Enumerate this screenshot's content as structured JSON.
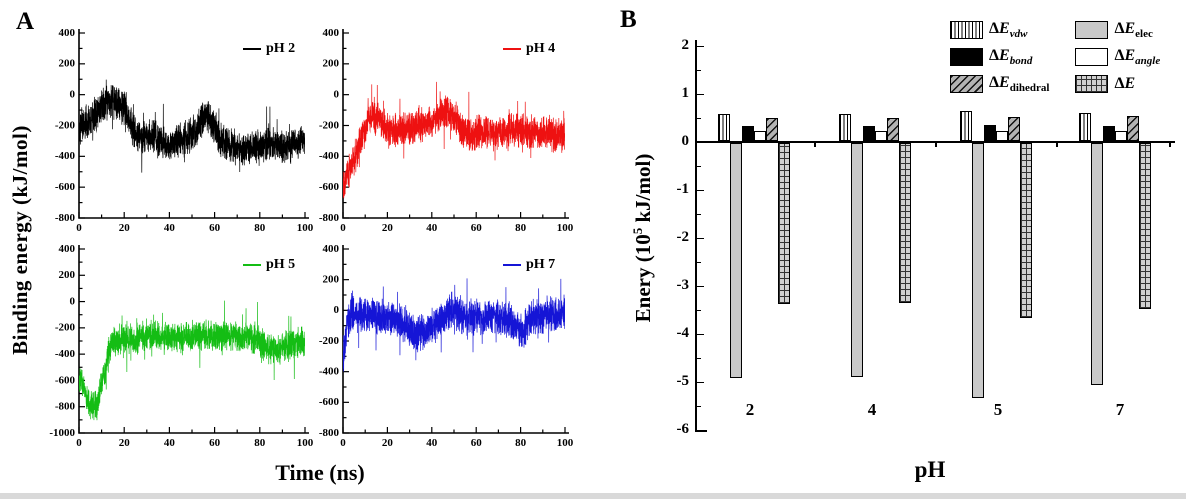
{
  "panel_a": {
    "label": "A",
    "ylabel": "Binding energy  (kJ/mol)",
    "xlabel": "Time (ns)"
  },
  "panel_b": {
    "label": "B",
    "ylabel_prefix": "Enery (10",
    "ylabel_sup": "5",
    "ylabel_suffix": " kJ/mol)",
    "xlabel": "pH"
  },
  "chart_data": [
    {
      "id": "A",
      "type": "line",
      "xlabel": "Time (ns)",
      "ylabel": "Binding energy (kJ/mol)",
      "xlim": [
        0,
        100
      ],
      "xticks": [
        0,
        20,
        40,
        60,
        80,
        100
      ],
      "x_minor_step": 10,
      "y_minor_step": 100,
      "subplots": [
        {
          "name": "pH 2",
          "color": "#000000",
          "ylim": [
            -800,
            400
          ],
          "yticks": [
            400,
            200,
            0,
            -200,
            -400,
            -600,
            -800
          ],
          "noise": 125,
          "spike": 190,
          "seed": 11,
          "trend": [
            [
              0,
              -220
            ],
            [
              3,
              -180
            ],
            [
              6,
              -140
            ],
            [
              10,
              -80
            ],
            [
              13,
              -50
            ],
            [
              16,
              -40
            ],
            [
              20,
              -90
            ],
            [
              24,
              -230
            ],
            [
              28,
              -290
            ],
            [
              32,
              -260
            ],
            [
              36,
              -310
            ],
            [
              40,
              -320
            ],
            [
              44,
              -300
            ],
            [
              48,
              -280
            ],
            [
              52,
              -230
            ],
            [
              55,
              -160
            ],
            [
              57,
              -140
            ],
            [
              60,
              -220
            ],
            [
              64,
              -310
            ],
            [
              68,
              -350
            ],
            [
              72,
              -360
            ],
            [
              76,
              -350
            ],
            [
              80,
              -340
            ],
            [
              84,
              -310
            ],
            [
              88,
              -330
            ],
            [
              92,
              -330
            ],
            [
              96,
              -310
            ],
            [
              100,
              -290
            ]
          ]
        },
        {
          "name": "pH 4",
          "color": "#ee1111",
          "ylim": [
            -800,
            400
          ],
          "yticks": [
            400,
            200,
            0,
            -200,
            -400,
            -600,
            -800
          ],
          "noise": 125,
          "spike": 190,
          "seed": 22,
          "trend": [
            [
              0,
              -560
            ],
            [
              2,
              -520
            ],
            [
              4,
              -450
            ],
            [
              6,
              -380
            ],
            [
              8,
              -300
            ],
            [
              10,
              -220
            ],
            [
              12,
              -150
            ],
            [
              14,
              -130
            ],
            [
              16,
              -150
            ],
            [
              18,
              -200
            ],
            [
              20,
              -230
            ],
            [
              24,
              -240
            ],
            [
              28,
              -220
            ],
            [
              32,
              -210
            ],
            [
              36,
              -190
            ],
            [
              40,
              -170
            ],
            [
              44,
              -130
            ],
            [
              47,
              -100
            ],
            [
              50,
              -140
            ],
            [
              53,
              -220
            ],
            [
              56,
              -260
            ],
            [
              60,
              -250
            ],
            [
              64,
              -240
            ],
            [
              68,
              -260
            ],
            [
              72,
              -240
            ],
            [
              76,
              -230
            ],
            [
              80,
              -230
            ],
            [
              84,
              -240
            ],
            [
              88,
              -250
            ],
            [
              92,
              -240
            ],
            [
              96,
              -260
            ],
            [
              100,
              -250
            ]
          ]
        },
        {
          "name": "pH 5",
          "color": "#14bd14",
          "ylim": [
            -1000,
            400
          ],
          "yticks": [
            400,
            200,
            0,
            -200,
            -400,
            -600,
            -800,
            -1000
          ],
          "noise": 130,
          "spike": 200,
          "seed": 33,
          "trend": [
            [
              0,
              -600
            ],
            [
              2,
              -620
            ],
            [
              4,
              -780
            ],
            [
              6,
              -800
            ],
            [
              8,
              -780
            ],
            [
              10,
              -620
            ],
            [
              12,
              -480
            ],
            [
              14,
              -340
            ],
            [
              16,
              -300
            ],
            [
              20,
              -280
            ],
            [
              25,
              -290
            ],
            [
              30,
              -260
            ],
            [
              35,
              -260
            ],
            [
              40,
              -280
            ],
            [
              45,
              -270
            ],
            [
              50,
              -260
            ],
            [
              55,
              -250
            ],
            [
              60,
              -270
            ],
            [
              65,
              -260
            ],
            [
              70,
              -270
            ],
            [
              75,
              -260
            ],
            [
              80,
              -300
            ],
            [
              84,
              -360
            ],
            [
              87,
              -380
            ],
            [
              90,
              -350
            ],
            [
              94,
              -320
            ],
            [
              100,
              -300
            ]
          ]
        },
        {
          "name": "pH 7",
          "color": "#1515d6",
          "ylim": [
            -800,
            400
          ],
          "yticks": [
            400,
            200,
            0,
            -200,
            -400,
            -600,
            -800
          ],
          "noise": 130,
          "spike": 200,
          "seed": 44,
          "trend": [
            [
              0,
              -380
            ],
            [
              1,
              -200
            ],
            [
              2,
              -80
            ],
            [
              4,
              -30
            ],
            [
              8,
              -20
            ],
            [
              12,
              -30
            ],
            [
              16,
              -50
            ],
            [
              20,
              -40
            ],
            [
              24,
              -60
            ],
            [
              28,
              -90
            ],
            [
              31,
              -130
            ],
            [
              33,
              -160
            ],
            [
              35,
              -140
            ],
            [
              37,
              -150
            ],
            [
              39,
              -110
            ],
            [
              42,
              -90
            ],
            [
              45,
              -70
            ],
            [
              48,
              -10
            ],
            [
              50,
              0
            ],
            [
              52,
              -40
            ],
            [
              56,
              -50
            ],
            [
              60,
              -40
            ],
            [
              64,
              -50
            ],
            [
              68,
              -40
            ],
            [
              72,
              -60
            ],
            [
              76,
              -80
            ],
            [
              79,
              -130
            ],
            [
              81,
              -140
            ],
            [
              84,
              -60
            ],
            [
              88,
              -40
            ],
            [
              92,
              -30
            ],
            [
              96,
              -20
            ],
            [
              100,
              -10
            ]
          ]
        }
      ]
    },
    {
      "id": "B",
      "type": "bar",
      "xlabel": "pH",
      "ylabel": "Enery (10^5 kJ/mol)",
      "categories": [
        "2",
        "4",
        "5",
        "7"
      ],
      "ylim": [
        2,
        -6
      ],
      "yticks": [
        2,
        1,
        0,
        -1,
        -2,
        -3,
        -4,
        -5,
        -6
      ],
      "y_minor_step": 0.5,
      "series": [
        {
          "name": "ΔE",
          "sub": "vdw",
          "sub_italic": true,
          "pattern": "vstripe",
          "values": [
            0.57,
            0.57,
            0.62,
            0.58
          ]
        },
        {
          "name": "ΔE",
          "sub": "elec",
          "sub_italic": false,
          "pattern": "gray",
          "values": [
            -4.9,
            -4.88,
            -5.32,
            -5.05
          ]
        },
        {
          "name": "ΔE",
          "sub": "bond",
          "sub_italic": true,
          "pattern": "black",
          "values": [
            0.32,
            0.32,
            0.34,
            0.32
          ]
        },
        {
          "name": "ΔE",
          "sub": "angle",
          "sub_italic": true,
          "pattern": "white",
          "values": [
            0.2,
            0.2,
            0.21,
            0.2
          ]
        },
        {
          "name": "ΔE",
          "sub": "dihedral",
          "sub_italic": false,
          "pattern": "diag",
          "values": [
            0.47,
            0.48,
            0.51,
            0.52
          ]
        },
        {
          "name": "ΔE",
          "sub": "",
          "sub_italic": false,
          "pattern": "grid",
          "values": [
            -3.35,
            -3.33,
            -3.65,
            -3.45
          ]
        }
      ],
      "legend_position": "top-right"
    }
  ]
}
